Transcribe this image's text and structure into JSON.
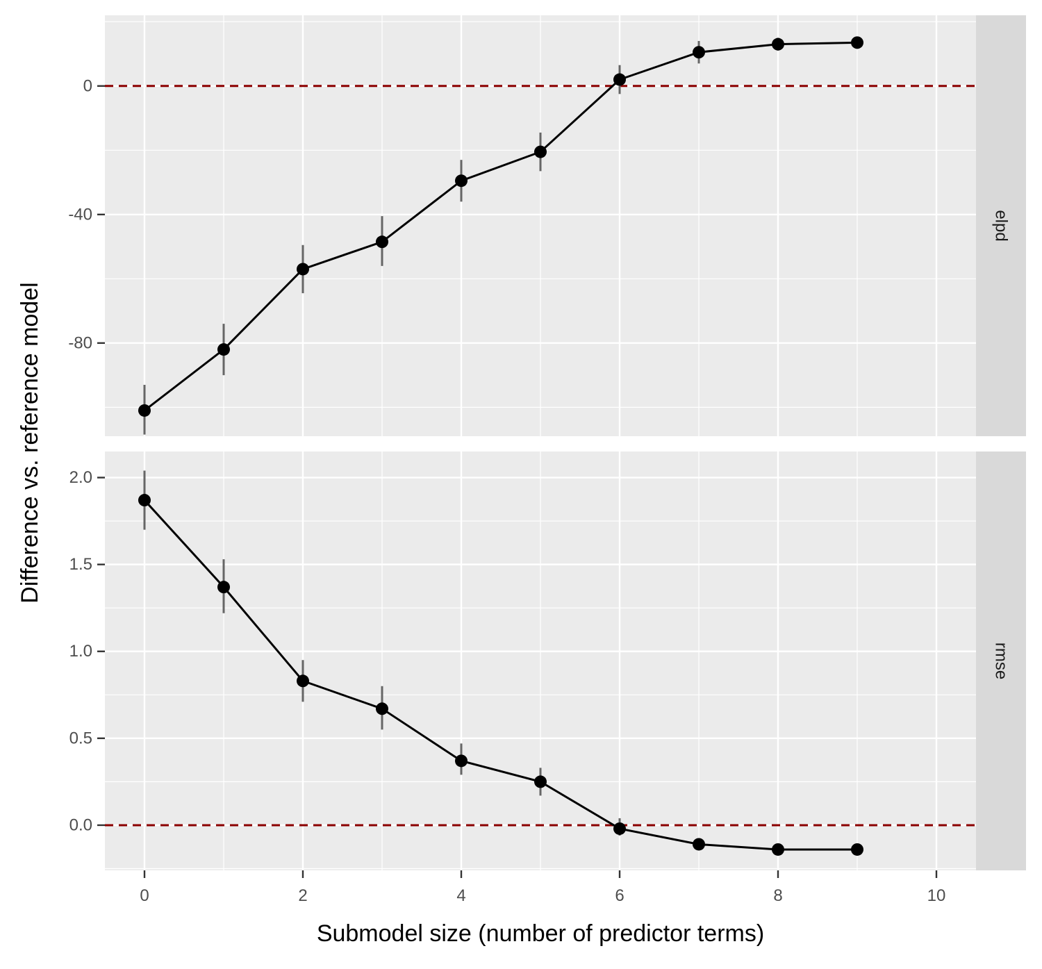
{
  "chart_data": {
    "type": "line",
    "xlabel": "Submodel size (number of predictor terms)",
    "ylabel": "Difference vs. reference model",
    "xlim": [
      -0.5,
      10.5
    ],
    "x_ticks": [
      0,
      2,
      4,
      6,
      8,
      10
    ],
    "x_tick_labels": [
      "0",
      "2",
      "4",
      "6",
      "8",
      "10"
    ],
    "grid": true,
    "colors": {
      "panel_bg": "#ebebeb",
      "grid": "#ffffff",
      "strip_bg": "#d9d9d9",
      "line": "#000000",
      "errorbar": "#666666",
      "reference_line": "#8b0000"
    },
    "panels": [
      {
        "strip_label": "elpd",
        "ylim": [
          -109,
          22
        ],
        "y_ticks": [
          0,
          -40,
          -80
        ],
        "y_tick_labels": [
          "0",
          "-40",
          "-80"
        ],
        "reference_line": 0,
        "x": [
          0,
          1,
          2,
          3,
          4,
          5,
          6,
          7,
          8,
          9
        ],
        "values": [
          -101,
          -82,
          -57,
          -48.5,
          -29.5,
          -20.5,
          2,
          10.5,
          13,
          13.5
        ],
        "lower": [
          -108.5,
          -90,
          -64.5,
          -56,
          -36,
          -26.5,
          -2.5,
          7,
          11,
          12
        ],
        "upper": [
          -93,
          -74,
          -49.5,
          -40.5,
          -23,
          -14.5,
          6.5,
          14,
          15,
          15
        ]
      },
      {
        "strip_label": "rmse",
        "ylim": [
          -0.26,
          2.15
        ],
        "y_ticks": [
          2.0,
          1.5,
          1.0,
          0.5,
          0.0
        ],
        "y_tick_labels": [
          "2.0",
          "1.5",
          "1.0",
          "0.5",
          "0.0"
        ],
        "reference_line": 0,
        "x": [
          0,
          1,
          2,
          3,
          4,
          5,
          6,
          7,
          8,
          9
        ],
        "values": [
          1.87,
          1.37,
          0.83,
          0.67,
          0.37,
          0.25,
          -0.02,
          -0.11,
          -0.14,
          -0.14
        ],
        "lower": [
          1.7,
          1.22,
          0.71,
          0.55,
          0.29,
          0.17,
          -0.06,
          -0.13,
          -0.15,
          -0.15
        ],
        "upper": [
          2.04,
          1.53,
          0.95,
          0.8,
          0.47,
          0.33,
          0.04,
          -0.09,
          -0.12,
          -0.12
        ]
      }
    ]
  }
}
